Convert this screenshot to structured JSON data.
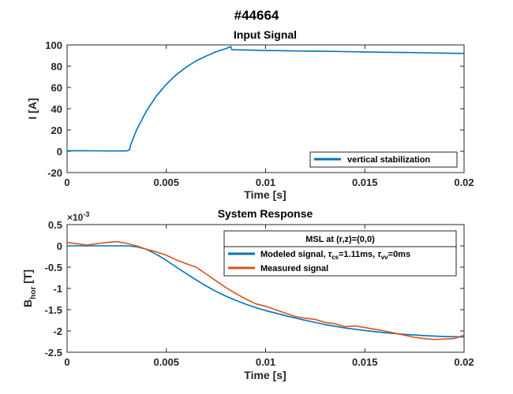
{
  "figure": {
    "suptitle": "#44664"
  },
  "chart_data": [
    {
      "type": "line",
      "title": "Input Signal",
      "xlabel": "Time [s]",
      "ylabel": "I [A]",
      "xlim": [
        0,
        0.02
      ],
      "ylim": [
        -20,
        100
      ],
      "xticks": [
        0,
        0.005,
        0.01,
        0.015,
        0.02
      ],
      "xtick_labels": [
        "0",
        "0.005",
        "0.01",
        "0.015",
        "0.02"
      ],
      "yticks": [
        -20,
        0,
        20,
        40,
        60,
        80,
        100
      ],
      "ytick_labels": [
        "-20",
        "0",
        "20",
        "40",
        "60",
        "80",
        "100"
      ],
      "grid": false,
      "legend_position": "bottom-right",
      "series": [
        {
          "name": "vertical stabilization",
          "color": "#0072BD",
          "x": [
            0,
            0.001,
            0.002,
            0.003,
            0.00315,
            0.0032,
            0.0035,
            0.004,
            0.0045,
            0.005,
            0.0055,
            0.006,
            0.0065,
            0.007,
            0.0075,
            0.008,
            0.00825,
            0.0083,
            0.009,
            0.01,
            0.011,
            0.012,
            0.013,
            0.014,
            0.015,
            0.016,
            0.017,
            0.018,
            0.019,
            0.02
          ],
          "y": [
            0.5,
            0.5,
            0.3,
            0.3,
            1.5,
            6,
            20,
            38,
            52,
            63,
            72,
            79,
            85,
            89.5,
            93.5,
            96.5,
            98.5,
            95.5,
            95.2,
            94.8,
            94.5,
            94.2,
            94.0,
            93.7,
            93.4,
            93.1,
            92.9,
            92.6,
            92.3,
            92.0
          ]
        }
      ]
    },
    {
      "type": "line",
      "title": "System Response",
      "xlabel": "Time [s]",
      "ylabel": "B",
      "ylabel_subscript": "hor",
      "ylabel_unit": " [T]",
      "y_exponent_base": "×10",
      "y_exponent": "-3",
      "xlim": [
        0,
        0.02
      ],
      "ylim": [
        -2.5,
        0.5
      ],
      "xticks": [
        0,
        0.005,
        0.01,
        0.015,
        0.02
      ],
      "xtick_labels": [
        "0",
        "0.005",
        "0.01",
        "0.015",
        "0.02"
      ],
      "yticks": [
        -2.5,
        -2,
        -1.5,
        -1,
        -0.5,
        0,
        0.5
      ],
      "ytick_labels": [
        "-2.5",
        "-2",
        "-1.5",
        "-1",
        "-0.5",
        "0",
        "0.5"
      ],
      "grid": false,
      "legend_position": "top-right",
      "legend_title": "MSL at (r,z)=(0,0)",
      "series": [
        {
          "name": "Modeled signal, τcs=1.11ms, τvv=0ms",
          "name_parts": [
            "Modeled signal, ",
            "τ",
            "cs",
            "=1.11ms, ",
            "τ",
            "vv",
            "=0ms"
          ],
          "color": "#0072BD",
          "x": [
            0,
            0.001,
            0.002,
            0.003,
            0.0035,
            0.004,
            0.0045,
            0.005,
            0.0055,
            0.006,
            0.0065,
            0.007,
            0.0075,
            0.008,
            0.0085,
            0.009,
            0.0095,
            0.01,
            0.011,
            0.012,
            0.013,
            0.014,
            0.015,
            0.016,
            0.017,
            0.018,
            0.019,
            0.02
          ],
          "y": [
            0,
            0,
            0,
            0,
            -0.02,
            -0.08,
            -0.2,
            -0.34,
            -0.5,
            -0.65,
            -0.8,
            -0.94,
            -1.07,
            -1.18,
            -1.28,
            -1.37,
            -1.45,
            -1.52,
            -1.64,
            -1.75,
            -1.85,
            -1.93,
            -1.99,
            -2.04,
            -2.08,
            -2.11,
            -2.13,
            -2.14
          ]
        },
        {
          "name": "Measured signal",
          "color": "#D95319",
          "x": [
            0,
            0.0005,
            0.001,
            0.0015,
            0.002,
            0.0025,
            0.003,
            0.0035,
            0.004,
            0.0045,
            0.005,
            0.0055,
            0.006,
            0.0065,
            0.007,
            0.0075,
            0.008,
            0.0085,
            0.009,
            0.0095,
            0.01,
            0.0105,
            0.011,
            0.0115,
            0.012,
            0.0125,
            0.013,
            0.0135,
            0.014,
            0.0145,
            0.015,
            0.0155,
            0.016,
            0.0165,
            0.017,
            0.0175,
            0.018,
            0.0185,
            0.019,
            0.0195,
            0.02
          ],
          "y": [
            0.08,
            0.05,
            0.02,
            0.05,
            0.08,
            0.1,
            0.06,
            0.0,
            -0.08,
            -0.14,
            -0.22,
            -0.33,
            -0.42,
            -0.5,
            -0.66,
            -0.82,
            -0.98,
            -1.12,
            -1.25,
            -1.36,
            -1.42,
            -1.5,
            -1.58,
            -1.66,
            -1.7,
            -1.73,
            -1.8,
            -1.83,
            -1.9,
            -1.88,
            -1.92,
            -1.96,
            -2.0,
            -2.05,
            -2.1,
            -2.15,
            -2.18,
            -2.2,
            -2.19,
            -2.18,
            -2.1
          ]
        }
      ]
    }
  ]
}
